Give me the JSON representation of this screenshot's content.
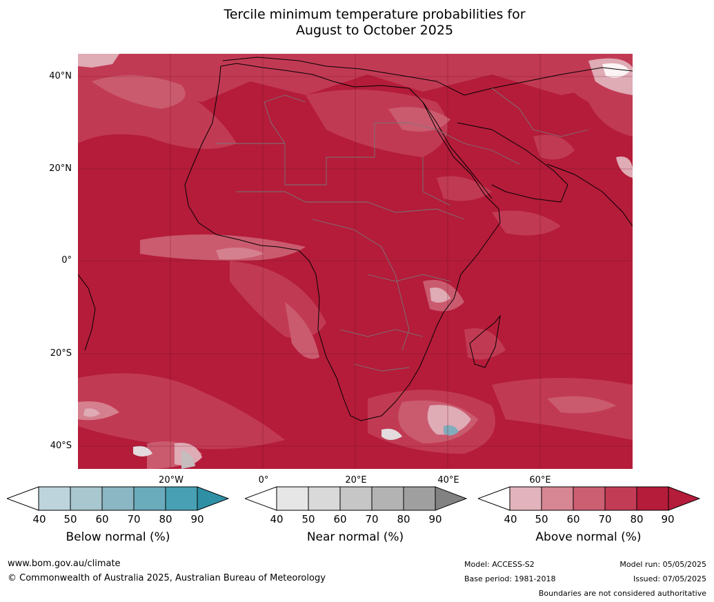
{
  "title": {
    "line1": "Tercile minimum temperature probabilities for",
    "line2": "August to October 2025"
  },
  "map": {
    "region": "Africa",
    "lat_labels": [
      "40°N",
      "20°N",
      "0°",
      "20°S",
      "40°S"
    ],
    "lon_labels": [
      "20°W",
      "0°",
      "20°E",
      "40°E",
      "60°E"
    ],
    "colors": {
      "above_90": "#b41c3a",
      "above_80": "#c23c55",
      "above_70": "#cc5f72",
      "above_60": "#d78693",
      "above_50": "#e2b3bc"
    }
  },
  "colorbars": [
    {
      "title": "Below normal (%)",
      "ticks": [
        "40",
        "50",
        "60",
        "70",
        "80",
        "90"
      ],
      "colors": [
        "#ffffff",
        "#bdd4dc",
        "#a8c7cf",
        "#8bb6c3",
        "#6aabbc",
        "#47a0b3",
        "#2e8fa5"
      ]
    },
    {
      "title": "Near normal (%)",
      "ticks": [
        "40",
        "50",
        "60",
        "70",
        "80",
        "90"
      ],
      "colors": [
        "#ffffff",
        "#e6e6e6",
        "#d9d9d9",
        "#c6c6c6",
        "#b3b3b3",
        "#9f9f9f",
        "#828282"
      ]
    },
    {
      "title": "Above normal (%)",
      "ticks": [
        "40",
        "50",
        "60",
        "70",
        "80",
        "90"
      ],
      "colors": [
        "#ffffff",
        "#e2b3bc",
        "#d78693",
        "#cc5f72",
        "#c23c55",
        "#b41c3a",
        "#b41c3a"
      ]
    }
  ],
  "footer": {
    "url": "www.bom.gov.au/climate",
    "copyright": "© Commonwealth of Australia 2025, Australian Bureau of Meteorology",
    "model": "Model: ACCESS-S2",
    "base_period": "Base period: 1981-2018",
    "model_run": "Model run: 05/05/2025",
    "issued": "Issued: 07/05/2025",
    "disclaimer": "Boundaries are not considered authoritative"
  }
}
